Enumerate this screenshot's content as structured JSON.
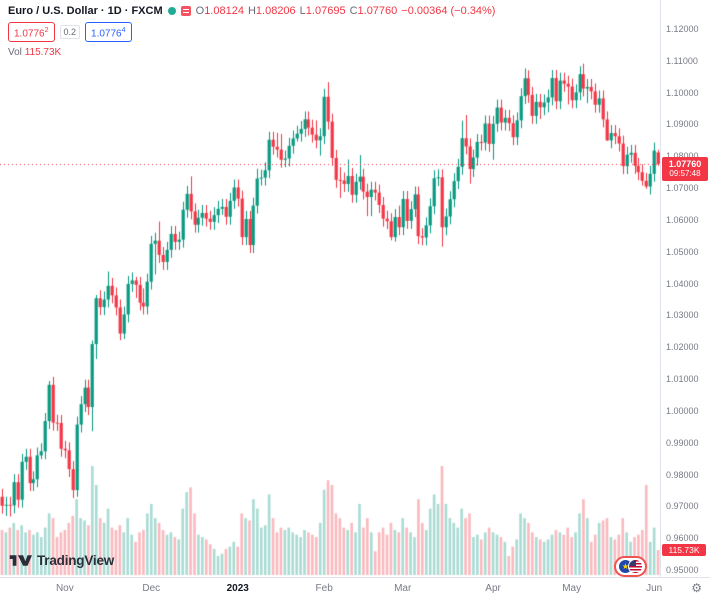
{
  "header": {
    "title": "Euro / U.S. Dollar · 1D · FXCM",
    "ohlc": {
      "o_label": "O",
      "o_value": "1.08124",
      "h_label": "H",
      "h_value": "1.08206",
      "l_label": "L",
      "l_value": "1.07695",
      "c_label": "C",
      "c_value": "1.07760",
      "change": "−0.00364 (−0.34%)"
    },
    "sell": {
      "price": "1.0776",
      "sup": "2"
    },
    "spread": "0.2",
    "buy": {
      "price": "1.0776",
      "sup": "4"
    },
    "vol_label": "Vol",
    "vol_value": "115.73K"
  },
  "price_axis": {
    "ticks": [
      "1.12000",
      "1.11000",
      "1.10000",
      "1.09000",
      "1.08000",
      "1.07000",
      "1.06000",
      "1.05000",
      "1.04000",
      "1.03000",
      "1.02000",
      "1.01000",
      "1.00000",
      "0.99000",
      "0.98000",
      "0.97000",
      "0.96000",
      "0.95000"
    ],
    "last_price_label": "1.07760",
    "countdown": "09:57:48",
    "volume_badge": "115.73K"
  },
  "time_axis": {
    "labels": [
      {
        "text": "Nov",
        "bar": 16
      },
      {
        "text": "Dec",
        "bar": 38
      },
      {
        "text": "2023",
        "bar": 60,
        "strong": true
      },
      {
        "text": "Feb",
        "bar": 82
      },
      {
        "text": "Mar",
        "bar": 102
      },
      {
        "text": "Apr",
        "bar": 125
      },
      {
        "text": "May",
        "bar": 145
      },
      {
        "text": "Jun",
        "bar": 166
      }
    ]
  },
  "footer": {
    "logo_text": "TradingView",
    "gear": "⚙"
  },
  "colors": {
    "up": "#089981",
    "down": "#f23645",
    "buy": "#2962ff",
    "axis_text": "#787b86",
    "volume_up": "rgba(8,153,129,0.35)",
    "volume_down": "rgba(242,54,69,0.35)"
  },
  "chart_data": {
    "type": "candlestick",
    "title": "Euro / U.S. Dollar",
    "symbol": "EUR/USD",
    "interval": "1D",
    "exchange": "FXCM",
    "price_range": [
      0.95,
      1.12
    ],
    "volume_max_k": 520,
    "last": {
      "open": 1.08124,
      "high": 1.08206,
      "low": 1.07695,
      "close": 1.0776,
      "change": -0.00364,
      "change_pct": -0.34,
      "volume_k": 115.73
    },
    "candles_format": [
      "open",
      "high",
      "low",
      "close",
      "volume_k"
    ],
    "candles": [
      [
        0.973,
        0.9755,
        0.9677,
        0.9702,
        209
      ],
      [
        0.9702,
        0.973,
        0.967,
        0.9705,
        198
      ],
      [
        0.9705,
        0.973,
        0.9668,
        0.9703,
        220
      ],
      [
        0.9703,
        0.9801,
        0.9678,
        0.9776,
        242
      ],
      [
        0.9776,
        0.9801,
        0.9696,
        0.9721,
        209
      ],
      [
        0.9721,
        0.9865,
        0.9696,
        0.984,
        231
      ],
      [
        0.984,
        0.9881,
        0.9815,
        0.9856,
        198
      ],
      [
        0.9856,
        0.9881,
        0.9748,
        0.9773,
        209
      ],
      [
        0.9773,
        0.981,
        0.9748,
        0.9785,
        187
      ],
      [
        0.9785,
        0.9885,
        0.976,
        0.986,
        198
      ],
      [
        0.986,
        0.9898,
        0.9848,
        0.9873,
        176
      ],
      [
        0.9873,
        0.9993,
        0.9848,
        0.9968,
        220
      ],
      [
        0.9968,
        1.0094,
        0.9943,
        1.0082,
        286
      ],
      [
        1.0082,
        1.0107,
        0.9938,
        0.9963,
        264
      ],
      [
        0.9963,
        0.9988,
        0.9937,
        0.9962,
        176
      ],
      [
        0.9962,
        0.9987,
        0.9856,
        0.9881,
        198
      ],
      [
        0.9881,
        0.9906,
        0.9851,
        0.9876,
        209
      ],
      [
        0.9876,
        0.9901,
        0.9792,
        0.9817,
        242
      ],
      [
        0.9817,
        0.9842,
        0.9726,
        0.9751,
        275
      ],
      [
        0.9751,
        0.9982,
        0.973,
        0.9957,
        352
      ],
      [
        0.9957,
        1.0046,
        0.9932,
        1.0021,
        264
      ],
      [
        1.0021,
        1.0098,
        0.9996,
        1.0073,
        253
      ],
      [
        1.0073,
        1.0098,
        0.9987,
        1.0012,
        231
      ],
      [
        1.0012,
        1.0221,
        0.9936,
        1.021,
        506
      ],
      [
        1.021,
        1.0364,
        1.0163,
        1.0354,
        418
      ],
      [
        1.0354,
        1.0379,
        1.0301,
        1.0326,
        264
      ],
      [
        1.0326,
        1.0375,
        1.0301,
        1.035,
        242
      ],
      [
        1.035,
        1.0438,
        1.0325,
        1.0393,
        308
      ],
      [
        1.0393,
        1.0418,
        1.0338,
        1.0363,
        220
      ],
      [
        1.0363,
        1.0388,
        1.03,
        1.0325,
        209
      ],
      [
        1.0325,
        1.035,
        1.0222,
        1.0243,
        231
      ],
      [
        1.0243,
        1.0328,
        1.0226,
        1.0303,
        198
      ],
      [
        1.0303,
        1.0424,
        1.0278,
        1.0399,
        264
      ],
      [
        1.0399,
        1.0435,
        1.0374,
        1.041,
        187
      ],
      [
        1.041,
        1.0421,
        1.0355,
        1.0396,
        154
      ],
      [
        1.0396,
        1.0421,
        1.0315,
        1.034,
        198
      ],
      [
        1.034,
        1.0385,
        1.0303,
        1.0328,
        209
      ],
      [
        1.0328,
        1.0431,
        1.0303,
        1.0406,
        286
      ],
      [
        1.0406,
        1.055,
        1.0381,
        1.0525,
        330
      ],
      [
        1.0525,
        1.056,
        1.0429,
        1.0535,
        264
      ],
      [
        1.0535,
        1.0595,
        1.0465,
        1.049,
        242
      ],
      [
        1.049,
        1.0515,
        1.0443,
        1.0468,
        209
      ],
      [
        1.0468,
        1.0531,
        1.0443,
        1.0506,
        187
      ],
      [
        1.0506,
        1.0581,
        1.0481,
        1.0556,
        198
      ],
      [
        1.0556,
        1.0581,
        1.0506,
        1.0531,
        176
      ],
      [
        1.0531,
        1.0563,
        1.0506,
        1.0538,
        165
      ],
      [
        1.0538,
        1.0657,
        1.0513,
        1.0632,
        308
      ],
      [
        1.0632,
        1.0707,
        1.0607,
        1.0682,
        385
      ],
      [
        1.0682,
        1.0737,
        1.0602,
        1.0627,
        407
      ],
      [
        1.0627,
        1.0652,
        1.056,
        1.0585,
        286
      ],
      [
        1.0585,
        1.0632,
        1.056,
        1.0607,
        187
      ],
      [
        1.0607,
        1.0647,
        1.0582,
        1.0622,
        176
      ],
      [
        1.0622,
        1.0647,
        1.0579,
        1.0604,
        165
      ],
      [
        1.0604,
        1.0629,
        1.0569,
        1.0594,
        143
      ],
      [
        1.0594,
        1.064,
        1.0569,
        1.0615,
        121
      ],
      [
        1.0615,
        1.066,
        1.059,
        1.0635,
        88
      ],
      [
        1.0635,
        1.0666,
        1.0616,
        1.0641,
        99
      ],
      [
        1.0641,
        1.0666,
        1.0585,
        1.061,
        121
      ],
      [
        1.061,
        1.0685,
        1.0585,
        1.066,
        132
      ],
      [
        1.066,
        1.0727,
        1.0635,
        1.0702,
        154
      ],
      [
        1.0702,
        1.0727,
        1.0642,
        1.0667,
        132
      ],
      [
        1.0667,
        1.0692,
        1.0521,
        1.0546,
        286
      ],
      [
        1.0546,
        1.0628,
        1.0521,
        1.0603,
        264
      ],
      [
        1.0603,
        1.0628,
        1.0496,
        1.0521,
        253
      ],
      [
        1.0521,
        1.067,
        1.0496,
        1.0645,
        352
      ],
      [
        1.0645,
        1.0761,
        1.062,
        1.073,
        308
      ],
      [
        1.073,
        1.0758,
        1.0708,
        1.0733,
        220
      ],
      [
        1.0733,
        1.0781,
        1.0708,
        1.0756,
        231
      ],
      [
        1.0756,
        1.0877,
        1.0731,
        1.0852,
        374
      ],
      [
        1.0852,
        1.0877,
        1.0805,
        1.083,
        264
      ],
      [
        1.083,
        1.0874,
        1.0796,
        1.0821,
        198
      ],
      [
        1.0821,
        1.087,
        1.0764,
        1.0789,
        220
      ],
      [
        1.0789,
        1.0818,
        1.0766,
        1.0793,
        209
      ],
      [
        1.0793,
        1.0858,
        1.0768,
        1.0833,
        220
      ],
      [
        1.0833,
        1.0881,
        1.0808,
        1.0856,
        198
      ],
      [
        1.0856,
        1.0896,
        1.0846,
        1.0871,
        187
      ],
      [
        1.0871,
        1.0911,
        1.0846,
        1.0886,
        176
      ],
      [
        1.0886,
        1.0941,
        1.0861,
        1.0916,
        209
      ],
      [
        1.0916,
        1.0941,
        1.0865,
        1.089,
        198
      ],
      [
        1.089,
        1.0915,
        1.0843,
        1.0868,
        187
      ],
      [
        1.0868,
        1.0913,
        1.0825,
        1.085,
        176
      ],
      [
        1.085,
        1.0888,
        1.0802,
        1.0863,
        242
      ],
      [
        1.0863,
        1.1012,
        1.0838,
        1.0987,
        396
      ],
      [
        1.0987,
        1.1033,
        1.0884,
        1.0909,
        440
      ],
      [
        1.0909,
        1.0934,
        1.077,
        1.0795,
        418
      ],
      [
        1.0795,
        1.082,
        1.0701,
        1.0726,
        286
      ],
      [
        1.0726,
        1.0766,
        1.0669,
        1.0724,
        264
      ],
      [
        1.0724,
        1.0749,
        1.0688,
        1.0713,
        220
      ],
      [
        1.0713,
        1.079,
        1.0688,
        1.0738,
        209
      ],
      [
        1.0738,
        1.0763,
        1.0654,
        1.0679,
        242
      ],
      [
        1.0679,
        1.0745,
        1.0654,
        1.072,
        198
      ],
      [
        1.072,
        1.0804,
        1.0695,
        1.0736,
        330
      ],
      [
        1.0736,
        1.0761,
        1.0664,
        1.0689,
        220
      ],
      [
        1.0689,
        1.0714,
        1.0612,
        1.0672,
        264
      ],
      [
        1.0672,
        1.072,
        1.0612,
        1.0695,
        198
      ],
      [
        1.0695,
        1.072,
        1.0661,
        1.0686,
        110
      ],
      [
        1.0686,
        1.0711,
        1.0622,
        1.0647,
        198
      ],
      [
        1.0647,
        1.0672,
        1.0579,
        1.0604,
        220
      ],
      [
        1.0604,
        1.0629,
        1.0571,
        1.0596,
        187
      ],
      [
        1.0596,
        1.0621,
        1.0536,
        1.0546,
        242
      ],
      [
        1.0546,
        1.0634,
        1.0532,
        1.0609,
        209
      ],
      [
        1.0609,
        1.0645,
        1.0552,
        1.0577,
        198
      ],
      [
        1.0577,
        1.0691,
        1.0552,
        1.0666,
        264
      ],
      [
        1.0666,
        1.0691,
        1.0572,
        1.0597,
        220
      ],
      [
        1.0597,
        1.0659,
        1.0572,
        1.0634,
        198
      ],
      [
        1.0634,
        1.0705,
        1.0609,
        1.068,
        176
      ],
      [
        1.068,
        1.0705,
        1.0524,
        1.0549,
        352
      ],
      [
        1.0549,
        1.0574,
        1.052,
        1.0545,
        242
      ],
      [
        1.0545,
        1.0608,
        1.052,
        1.0583,
        209
      ],
      [
        1.0583,
        1.0668,
        1.0558,
        1.0643,
        308
      ],
      [
        1.0643,
        1.0756,
        1.0618,
        1.0731,
        374
      ],
      [
        1.0731,
        1.0759,
        1.0706,
        1.0734,
        330
      ],
      [
        1.0734,
        1.0759,
        1.0516,
        1.0577,
        506
      ],
      [
        1.0577,
        1.0636,
        1.0552,
        1.0611,
        330
      ],
      [
        1.0611,
        1.069,
        1.0586,
        1.0665,
        264
      ],
      [
        1.0665,
        1.0747,
        1.064,
        1.0722,
        242
      ],
      [
        1.0722,
        1.0792,
        1.0697,
        1.0767,
        220
      ],
      [
        1.0767,
        1.0912,
        1.0742,
        1.0857,
        308
      ],
      [
        1.0857,
        1.093,
        1.0806,
        1.0831,
        264
      ],
      [
        1.0831,
        1.0856,
        1.0714,
        1.076,
        286
      ],
      [
        1.076,
        1.0821,
        1.0735,
        1.0796,
        176
      ],
      [
        1.0796,
        1.087,
        1.0771,
        1.0845,
        187
      ],
      [
        1.0845,
        1.0868,
        1.0818,
        1.0843,
        165
      ],
      [
        1.0843,
        1.0928,
        1.0818,
        1.0903,
        198
      ],
      [
        1.0903,
        1.0928,
        1.0814,
        1.0839,
        220
      ],
      [
        1.0839,
        1.0927,
        1.0789,
        1.0902,
        198
      ],
      [
        1.0902,
        1.0978,
        1.0877,
        1.0953,
        187
      ],
      [
        1.0953,
        1.0978,
        1.0881,
        1.0906,
        176
      ],
      [
        1.0906,
        1.0946,
        1.0881,
        1.0921,
        154
      ],
      [
        1.0921,
        1.0946,
        1.0879,
        1.0904,
        88
      ],
      [
        1.0904,
        1.0929,
        1.0835,
        1.086,
        132
      ],
      [
        1.086,
        1.0938,
        1.0835,
        1.0913,
        165
      ],
      [
        1.0913,
        1.1014,
        1.0888,
        1.0989,
        286
      ],
      [
        1.0989,
        1.1076,
        1.0964,
        1.1045,
        264
      ],
      [
        1.1045,
        1.107,
        1.0968,
        1.0993,
        242
      ],
      [
        1.0993,
        1.1018,
        1.0902,
        1.0927,
        198
      ],
      [
        1.0927,
        1.0996,
        1.0902,
        1.0971,
        176
      ],
      [
        1.0971,
        1.0996,
        1.0917,
        1.0954,
        165
      ],
      [
        1.0954,
        1.0994,
        1.0929,
        1.0969,
        154
      ],
      [
        1.0969,
        1.101,
        1.0938,
        1.0985,
        165
      ],
      [
        1.0985,
        1.1071,
        1.096,
        1.1046,
        187
      ],
      [
        1.1046,
        1.1071,
        1.0948,
        1.0973,
        209
      ],
      [
        1.0973,
        1.1063,
        1.0948,
        1.1038,
        198
      ],
      [
        1.1038,
        1.1063,
        1.1003,
        1.1028,
        187
      ],
      [
        1.1028,
        1.1053,
        1.0963,
        1.1019,
        220
      ],
      [
        1.1019,
        1.1044,
        1.0951,
        1.0976,
        176
      ],
      [
        1.0976,
        1.1026,
        1.0951,
        1.1001,
        198
      ],
      [
        1.1001,
        1.1083,
        1.0976,
        1.1058,
        286
      ],
      [
        1.1058,
        1.1091,
        1.0988,
        1.1013,
        352
      ],
      [
        1.1013,
        1.1043,
        1.0967,
        1.1018,
        264
      ],
      [
        1.1018,
        1.1043,
        1.0979,
        1.1004,
        154
      ],
      [
        1.1004,
        1.1029,
        1.0937,
        1.0962,
        187
      ],
      [
        1.0962,
        1.1007,
        1.0937,
        1.0982,
        242
      ],
      [
        1.0982,
        1.1007,
        1.0891,
        1.0916,
        253
      ],
      [
        1.0916,
        1.0941,
        1.0848,
        1.085,
        264
      ],
      [
        1.085,
        1.0898,
        1.0825,
        1.0873,
        176
      ],
      [
        1.0873,
        1.0898,
        1.0838,
        1.0863,
        165
      ],
      [
        1.0863,
        1.0888,
        1.0815,
        1.084,
        187
      ],
      [
        1.084,
        1.0865,
        1.0744,
        1.0769,
        264
      ],
      [
        1.0769,
        1.083,
        1.0744,
        1.0805,
        198
      ],
      [
        1.0805,
        1.0836,
        1.078,
        1.0811,
        154
      ],
      [
        1.0811,
        1.0836,
        1.0745,
        1.077,
        176
      ],
      [
        1.077,
        1.0795,
        1.0725,
        1.075,
        187
      ],
      [
        1.075,
        1.0775,
        1.0708,
        1.0723,
        209
      ],
      [
        1.0723,
        1.0748,
        1.0698,
        1.0705,
        418
      ],
      [
        1.0705,
        1.077,
        1.068,
        1.0745,
        154
      ],
      [
        1.0745,
        1.0843,
        1.072,
        1.0818,
        220
      ],
      [
        1.08124,
        1.08206,
        1.07695,
        1.0776,
        115.73
      ]
    ]
  }
}
